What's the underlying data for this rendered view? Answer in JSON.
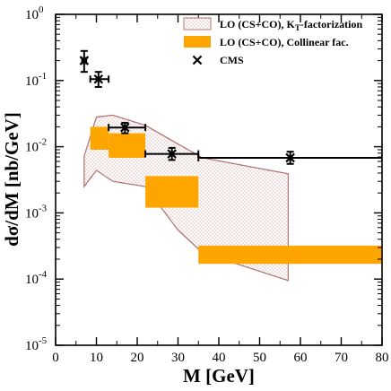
{
  "chart_data": {
    "type": "scatter",
    "xlabel": "M [GeV]",
    "ylabel": "dσ/dM [nb/GeV]",
    "xlim": [
      0,
      80
    ],
    "ylim": [
      1e-05,
      1
    ],
    "yscale": "log",
    "x_ticks": [
      0,
      10,
      20,
      30,
      40,
      50,
      60,
      70,
      80
    ],
    "y_ticks": [
      {
        "value": 1e-05,
        "base": "10",
        "exp": "-5"
      },
      {
        "value": 0.0001,
        "base": "10",
        "exp": "-4"
      },
      {
        "value": 0.001,
        "base": "10",
        "exp": "-3"
      },
      {
        "value": 0.01,
        "base": "10",
        "exp": "-2"
      },
      {
        "value": 0.1,
        "base": "10",
        "exp": "-1"
      },
      {
        "value": 1,
        "base": "10",
        "exp": "0"
      }
    ],
    "grid": false,
    "legend_position": "top-right",
    "legend": [
      {
        "label_main": "LO (CS+CO), K",
        "label_sub": "T",
        "label_rest": "-factorization",
        "style": "hatched-band"
      },
      {
        "label_main": "LO (CS+CO), Collinear fac.",
        "label_sub": "",
        "label_rest": "",
        "style": "solid-band"
      },
      {
        "label_main": "CMS",
        "label_sub": "",
        "label_rest": "",
        "style": "cross-marker"
      }
    ],
    "colors": {
      "kt_band_stroke": "#b07070",
      "kt_band_hatch": "#c89090",
      "collinear_fill": "#ffa500",
      "data_marker": "#000000"
    },
    "kt_band": {
      "upper": [
        [
          7,
          0.0072
        ],
        [
          10,
          0.028
        ],
        [
          14,
          0.03
        ],
        [
          22,
          0.021
        ],
        [
          30,
          0.011
        ],
        [
          36,
          0.0068
        ],
        [
          57,
          0.0039
        ]
      ],
      "lower": [
        [
          7,
          0.0025
        ],
        [
          10,
          0.0044
        ],
        [
          14,
          0.003
        ],
        [
          22,
          0.0025
        ],
        [
          30,
          0.00055
        ],
        [
          36,
          0.00025
        ],
        [
          57,
          9.5e-05
        ]
      ]
    },
    "collinear_bands": [
      {
        "x": [
          8.5,
          13
        ],
        "y": [
          0.009,
          0.02
        ]
      },
      {
        "x": [
          13,
          22
        ],
        "y": [
          0.0068,
          0.016
        ]
      },
      {
        "x": [
          22,
          35
        ],
        "y": [
          0.0012,
          0.0036
        ]
      },
      {
        "x": [
          35,
          80
        ],
        "y": [
          0.00017,
          0.00032
        ]
      }
    ],
    "cms_points": [
      {
        "x": 7,
        "y": 0.2,
        "xerr": [
          6.5,
          7.5
        ],
        "yerr": [
          0.135,
          0.28
        ]
      },
      {
        "x": 10.5,
        "y": 0.105,
        "xerr": [
          8.5,
          13
        ],
        "yerr": [
          0.08,
          0.135
        ]
      },
      {
        "x": 17,
        "y": 0.0195,
        "xerr": [
          13,
          22
        ],
        "yerr": [
          0.016,
          0.023
        ]
      },
      {
        "x": 28.5,
        "y": 0.0078,
        "xerr": [
          22,
          35
        ],
        "yerr": [
          0.0063,
          0.0096
        ]
      },
      {
        "x": 57.5,
        "y": 0.0068,
        "xerr": [
          35,
          80
        ],
        "yerr": [
          0.0055,
          0.0084
        ]
      }
    ]
  }
}
